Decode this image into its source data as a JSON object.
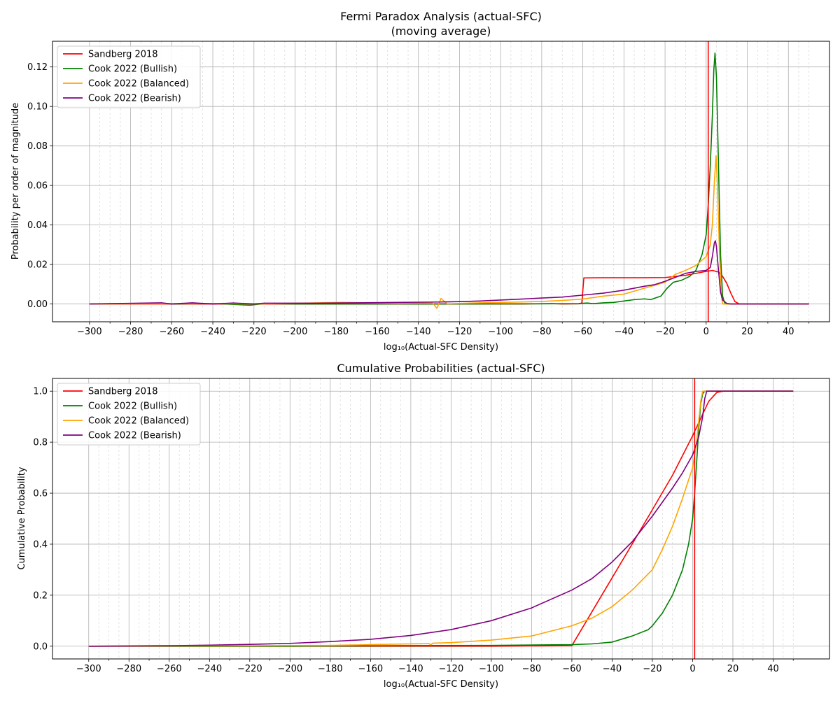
{
  "chart_data": [
    {
      "type": "line",
      "title": "Fermi Paradox Analysis (actual-SFC)",
      "subtitle": "(moving average)",
      "xlabel": "log₁₀(Actual-SFC Density)",
      "ylabel": "Probability per order of magnitude",
      "xlim": [
        -318,
        60
      ],
      "ylim": [
        -0.009,
        0.133
      ],
      "xticks": [
        -300,
        -280,
        -260,
        -240,
        -220,
        -200,
        -180,
        -160,
        -140,
        -120,
        -100,
        -80,
        -60,
        -40,
        -20,
        0,
        20,
        40
      ],
      "yticks": [
        0.0,
        0.02,
        0.04,
        0.06,
        0.08,
        0.1,
        0.12
      ],
      "ytick_labels": [
        "0.00",
        "0.02",
        "0.04",
        "0.06",
        "0.08",
        "0.10",
        "0.12"
      ],
      "grid": true,
      "vline_x": 1,
      "legend_position": "top-left",
      "series": [
        {
          "name": "Sandberg 2018",
          "color": "#ff0000",
          "points": [
            [
              -300,
              0
            ],
            [
              -240,
              0
            ],
            [
              -200,
              0
            ],
            [
              -160,
              0
            ],
            [
              -120,
              0
            ],
            [
              -90,
              0
            ],
            [
              -75,
              0.0002
            ],
            [
              -70,
              0
            ],
            [
              -62,
              0.0001
            ],
            [
              -60.5,
              0.0005
            ],
            [
              -59.5,
              0.0132
            ],
            [
              -50,
              0.0133
            ],
            [
              -40,
              0.0133
            ],
            [
              -30,
              0.0133
            ],
            [
              -20,
              0.0134
            ],
            [
              -10,
              0.0145
            ],
            [
              0,
              0.0165
            ],
            [
              3,
              0.017
            ],
            [
              6,
              0.0162
            ],
            [
              8,
              0.014
            ],
            [
              10,
              0.0105
            ],
            [
              12,
              0.0055
            ],
            [
              14,
              0.0012
            ],
            [
              16,
              0.0001
            ],
            [
              20,
              0
            ],
            [
              50,
              0
            ]
          ]
        },
        {
          "name": "Cook 2022 (Bullish)",
          "color": "#008000",
          "points": [
            [
              -300,
              0
            ],
            [
              -265,
              0.0004
            ],
            [
              -260,
              0
            ],
            [
              -240,
              0.0003
            ],
            [
              -222,
              -0.0006
            ],
            [
              -215,
              0.0002
            ],
            [
              -200,
              0
            ],
            [
              -160,
              0
            ],
            [
              -120,
              0
            ],
            [
              -80,
              0.0001
            ],
            [
              -62,
              0.0002
            ],
            [
              -58,
              0.0005
            ],
            [
              -55,
              0.0002
            ],
            [
              -50,
              0.0006
            ],
            [
              -45,
              0.0008
            ],
            [
              -40,
              0.0015
            ],
            [
              -35,
              0.0022
            ],
            [
              -30,
              0.0026
            ],
            [
              -27,
              0.0022
            ],
            [
              -22,
              0.004
            ],
            [
              -19,
              0.008
            ],
            [
              -16,
              0.011
            ],
            [
              -12,
              0.012
            ],
            [
              -8,
              0.014
            ],
            [
              -5,
              0.017
            ],
            [
              -2,
              0.025
            ],
            [
              0,
              0.035
            ],
            [
              1,
              0.05
            ],
            [
              2,
              0.07
            ],
            [
              3,
              0.095
            ],
            [
              3.7,
              0.118
            ],
            [
              4.3,
              0.127
            ],
            [
              5,
              0.115
            ],
            [
              6,
              0.07
            ],
            [
              7,
              0.025
            ],
            [
              8,
              0.004
            ],
            [
              9,
              0.0005
            ],
            [
              10,
              0
            ],
            [
              50,
              0
            ]
          ]
        },
        {
          "name": "Cook 2022 (Balanced)",
          "color": "#ffa500",
          "points": [
            [
              -300,
              0
            ],
            [
              -245,
              0.0003
            ],
            [
              -220,
              0
            ],
            [
              -177,
              0.0008
            ],
            [
              -150,
              0.0003
            ],
            [
              -140,
              0.0005
            ],
            [
              -133,
              0.0004
            ],
            [
              -131,
              -0.0022
            ],
            [
              -129,
              0.0028
            ],
            [
              -126,
              0.0001
            ],
            [
              -110,
              0.0006
            ],
            [
              -90,
              0.001
            ],
            [
              -80,
              0.0013
            ],
            [
              -70,
              0.0018
            ],
            [
              -60,
              0.0025
            ],
            [
              -50,
              0.004
            ],
            [
              -40,
              0.005
            ],
            [
              -30,
              0.008
            ],
            [
              -20,
              0.011
            ],
            [
              -15,
              0.015
            ],
            [
              -10,
              0.017
            ],
            [
              -5,
              0.0195
            ],
            [
              0,
              0.024
            ],
            [
              2,
              0.03
            ],
            [
              3,
              0.04
            ],
            [
              4,
              0.062
            ],
            [
              4.8,
              0.075
            ],
            [
              5.5,
              0.06
            ],
            [
              6.5,
              0.025
            ],
            [
              7.5,
              0.004
            ],
            [
              8,
              0
            ],
            [
              50,
              0
            ]
          ]
        },
        {
          "name": "Cook 2022 (Bearish)",
          "color": "#800080",
          "points": [
            [
              -300,
              0
            ],
            [
              -265,
              0.0006
            ],
            [
              -260,
              0
            ],
            [
              -250,
              0.0006
            ],
            [
              -240,
              0
            ],
            [
              -230,
              0.0005
            ],
            [
              -220,
              0
            ],
            [
              -215,
              0.0004
            ],
            [
              -205,
              0.0004
            ],
            [
              -190,
              0.0004
            ],
            [
              -170,
              0.0006
            ],
            [
              -150,
              0.0008
            ],
            [
              -130,
              0.001
            ],
            [
              -120,
              0.0012
            ],
            [
              -110,
              0.0015
            ],
            [
              -100,
              0.002
            ],
            [
              -90,
              0.0025
            ],
            [
              -80,
              0.003
            ],
            [
              -70,
              0.0035
            ],
            [
              -60,
              0.0045
            ],
            [
              -50,
              0.0055
            ],
            [
              -40,
              0.007
            ],
            [
              -30,
              0.009
            ],
            [
              -25,
              0.0098
            ],
            [
              -20,
              0.0115
            ],
            [
              -15,
              0.0135
            ],
            [
              -10,
              0.0155
            ],
            [
              -5,
              0.0165
            ],
            [
              0,
              0.017
            ],
            [
              2,
              0.0185
            ],
            [
              3,
              0.024
            ],
            [
              4,
              0.031
            ],
            [
              4.5,
              0.032
            ],
            [
              5,
              0.029
            ],
            [
              6,
              0.017
            ],
            [
              7,
              0.006
            ],
            [
              8,
              0.002
            ],
            [
              10,
              0.0003
            ],
            [
              12,
              0
            ],
            [
              50,
              0
            ]
          ]
        }
      ]
    },
    {
      "type": "line",
      "title": "Cumulative Probabilities (actual-SFC)",
      "xlabel": "log₁₀(Actual-SFC Density)",
      "ylabel": "Cumulative Probability",
      "xlim": [
        -318,
        68
      ],
      "ylim": [
        -0.05,
        1.05
      ],
      "xticks": [
        -300,
        -280,
        -260,
        -240,
        -220,
        -200,
        -180,
        -160,
        -140,
        -120,
        -100,
        -80,
        -60,
        -40,
        -20,
        0,
        20,
        40
      ],
      "yticks": [
        0.0,
        0.2,
        0.4,
        0.6,
        0.8,
        1.0
      ],
      "ytick_labels": [
        "0.0",
        "0.2",
        "0.4",
        "0.6",
        "0.8",
        "1.0"
      ],
      "grid": true,
      "vline_x": 1,
      "legend_position": "top-left",
      "series": [
        {
          "name": "Sandberg 2018",
          "color": "#ff0000",
          "points": [
            [
              -300,
              0
            ],
            [
              -200,
              0
            ],
            [
              -100,
              0
            ],
            [
              -60,
              0.002
            ],
            [
              -50,
              0.135
            ],
            [
              -40,
              0.268
            ],
            [
              -30,
              0.401
            ],
            [
              -20,
              0.535
            ],
            [
              -10,
              0.67
            ],
            [
              0,
              0.825
            ],
            [
              5,
              0.91
            ],
            [
              8,
              0.96
            ],
            [
              12,
              0.995
            ],
            [
              15,
              1.0
            ],
            [
              50,
              1.0
            ]
          ]
        },
        {
          "name": "Cook 2022 (Bullish)",
          "color": "#008000",
          "points": [
            [
              -300,
              0
            ],
            [
              -200,
              0
            ],
            [
              -150,
              0.002
            ],
            [
              -100,
              0.003
            ],
            [
              -60,
              0.006
            ],
            [
              -50,
              0.009
            ],
            [
              -40,
              0.016
            ],
            [
              -30,
              0.04
            ],
            [
              -22,
              0.065
            ],
            [
              -20,
              0.08
            ],
            [
              -15,
              0.13
            ],
            [
              -10,
              0.2
            ],
            [
              -5,
              0.3
            ],
            [
              -2,
              0.4
            ],
            [
              0,
              0.5
            ],
            [
              1,
              0.6
            ],
            [
              2,
              0.72
            ],
            [
              3,
              0.85
            ],
            [
              4,
              0.95
            ],
            [
              5,
              0.99
            ],
            [
              6,
              1.0
            ],
            [
              50,
              1.0
            ]
          ]
        },
        {
          "name": "Cook 2022 (Balanced)",
          "color": "#ffa500",
          "points": [
            [
              -300,
              0
            ],
            [
              -180,
              0.003
            ],
            [
              -160,
              0.006
            ],
            [
              -140,
              0.009
            ],
            [
              -131,
              0.01
            ],
            [
              -130,
              0.005
            ],
            [
              -129,
              0.012
            ],
            [
              -120,
              0.014
            ],
            [
              -100,
              0.024
            ],
            [
              -80,
              0.04
            ],
            [
              -60,
              0.08
            ],
            [
              -50,
              0.11
            ],
            [
              -40,
              0.155
            ],
            [
              -30,
              0.22
            ],
            [
              -20,
              0.3
            ],
            [
              -15,
              0.38
            ],
            [
              -10,
              0.47
            ],
            [
              -5,
              0.58
            ],
            [
              0,
              0.7
            ],
            [
              2,
              0.8
            ],
            [
              3,
              0.88
            ],
            [
              4,
              0.96
            ],
            [
              5,
              1.0
            ],
            [
              50,
              1.0
            ]
          ]
        },
        {
          "name": "Cook 2022 (Bearish)",
          "color": "#800080",
          "points": [
            [
              -300,
              0
            ],
            [
              -260,
              0.002
            ],
            [
              -240,
              0.004
            ],
            [
              -220,
              0.007
            ],
            [
              -200,
              0.011
            ],
            [
              -180,
              0.018
            ],
            [
              -160,
              0.027
            ],
            [
              -140,
              0.042
            ],
            [
              -120,
              0.065
            ],
            [
              -100,
              0.1
            ],
            [
              -80,
              0.15
            ],
            [
              -60,
              0.22
            ],
            [
              -50,
              0.265
            ],
            [
              -40,
              0.33
            ],
            [
              -30,
              0.41
            ],
            [
              -20,
              0.51
            ],
            [
              -10,
              0.62
            ],
            [
              -5,
              0.68
            ],
            [
              0,
              0.75
            ],
            [
              3,
              0.82
            ],
            [
              5,
              0.9
            ],
            [
              6,
              0.97
            ],
            [
              7,
              1.0
            ],
            [
              50,
              1.0
            ]
          ]
        }
      ]
    }
  ]
}
